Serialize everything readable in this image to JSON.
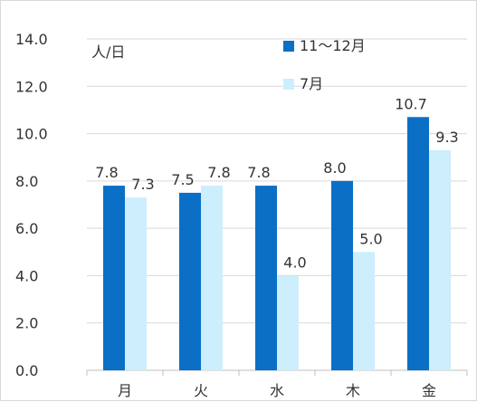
{
  "chart_data": {
    "type": "bar",
    "categories": [
      "月",
      "火",
      "水",
      "木",
      "金"
    ],
    "series": [
      {
        "name": "11〜12月",
        "values": [
          7.8,
          7.5,
          7.8,
          8.0,
          10.7
        ],
        "color": "#0b6fc6"
      },
      {
        "name": "7月",
        "values": [
          7.3,
          7.8,
          4.0,
          5.0,
          9.3
        ],
        "color": "#cdeefc"
      }
    ],
    "data_labels": [
      [
        "7.8",
        "7.5",
        "7.8",
        "8.0",
        "10.7"
      ],
      [
        "7.3",
        "7.8",
        "4.0",
        "5.0",
        "9.3"
      ]
    ],
    "ylim": [
      0,
      14
    ],
    "y_ticks": [
      "0.0",
      "2.0",
      "4.0",
      "6.0",
      "8.0",
      "10.0",
      "12.0",
      "14.0"
    ],
    "unit_label": "人/日",
    "grid": true,
    "legend_position": "top"
  },
  "colors": {
    "grid": "#d9d9d9",
    "axis": "#bfbfbf",
    "text": "#333333"
  }
}
